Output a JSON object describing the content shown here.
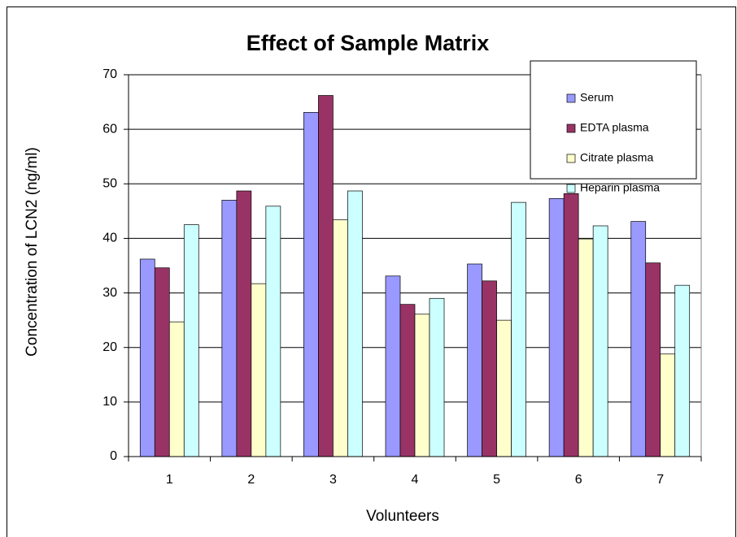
{
  "chart_data": {
    "type": "bar",
    "title": "Effect of Sample Matrix",
    "x_label": "Volunteers",
    "y_label": "Concentration of LCN2 (ng/ml)",
    "categories": [
      "1",
      "2",
      "3",
      "4",
      "5",
      "6",
      "7"
    ],
    "series": [
      {
        "name": "Serum",
        "color": "#9999ff",
        "values": [
          36.2,
          47.0,
          63.1,
          33.1,
          35.3,
          47.3,
          43.1
        ]
      },
      {
        "name": "EDTA plasma",
        "color": "#993366",
        "values": [
          34.6,
          48.7,
          66.2,
          27.9,
          32.2,
          48.2,
          35.5
        ]
      },
      {
        "name": "Citrate plasma",
        "color": "#ffffcc",
        "values": [
          24.7,
          31.7,
          43.4,
          26.1,
          25.0,
          39.9,
          18.8
        ]
      },
      {
        "name": "Heparin plasma",
        "color": "#ccffff",
        "values": [
          42.5,
          45.9,
          48.7,
          29.0,
          46.6,
          42.3,
          31.4
        ]
      }
    ],
    "ylim": [
      0,
      70
    ],
    "yticks": [
      0,
      10,
      20,
      30,
      40,
      50,
      60,
      70
    ],
    "grid": true,
    "legend": "top-right"
  }
}
